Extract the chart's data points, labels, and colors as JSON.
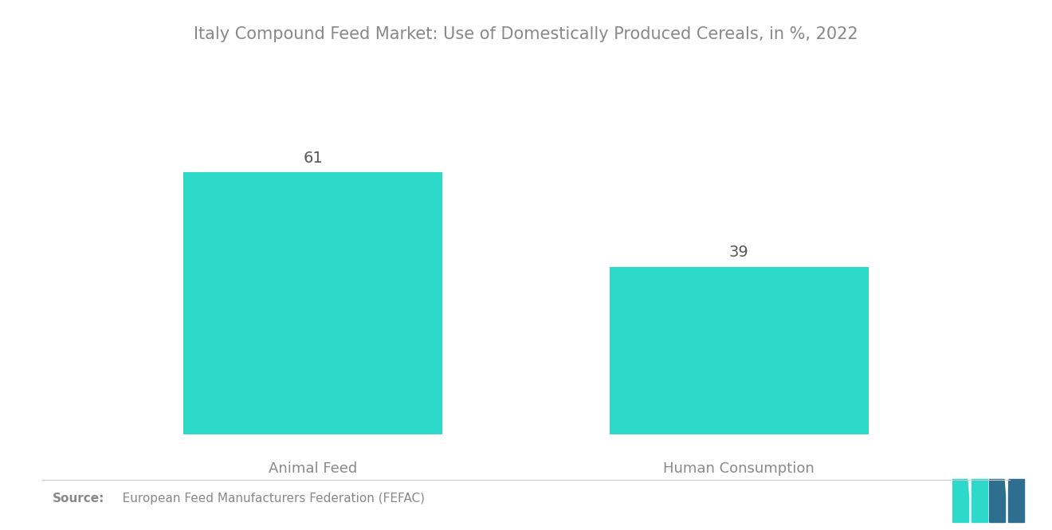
{
  "title": "Italy Compound Feed Market: Use of Domestically Produced Cereals, in %, 2022",
  "categories": [
    "Animal Feed",
    "Human Consumption"
  ],
  "values": [
    61,
    39
  ],
  "bar_color": "#2DD9C8",
  "value_color": "#555555",
  "label_color": "#888888",
  "title_color": "#888888",
  "background_color": "#ffffff",
  "source_label": "Source:",
  "source_text": "   European Feed Manufacturers Federation (FEFAC)",
  "title_fontsize": 15,
  "label_fontsize": 13,
  "value_fontsize": 14,
  "source_fontsize": 11,
  "ylim": [
    0,
    80
  ],
  "bar_width": 0.28,
  "x_positions": [
    0.27,
    0.73
  ]
}
